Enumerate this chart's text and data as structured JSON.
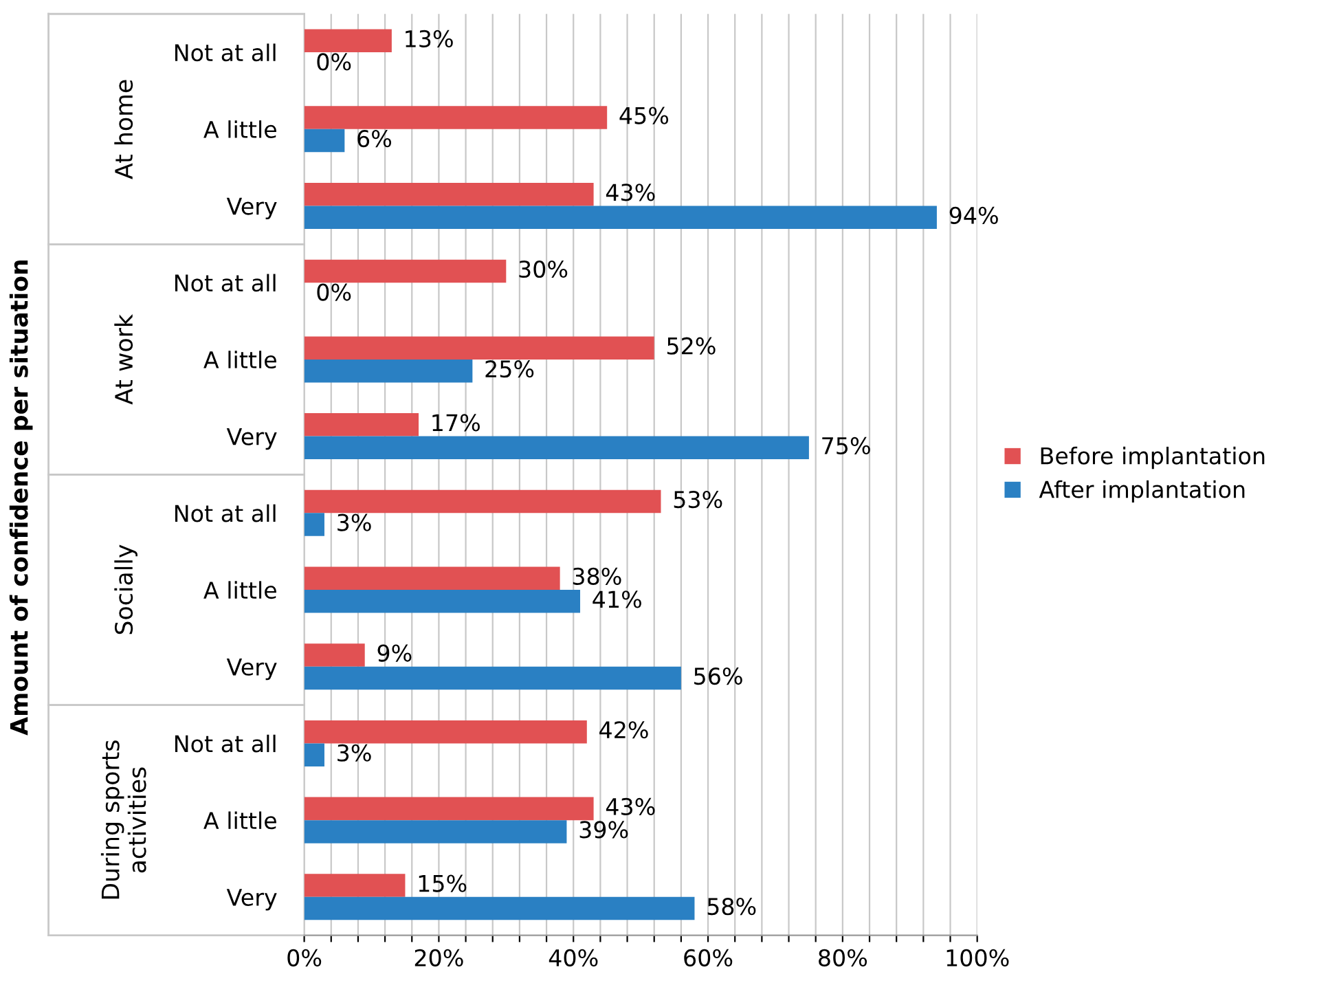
{
  "chart_data": {
    "type": "bar",
    "orientation": "horizontal",
    "categories": [
      "Not at all",
      "A little",
      "Very",
      "Not at all",
      "A little",
      "Very",
      "Not at all",
      "A little",
      "Very",
      "Not at all",
      "A little",
      "Very"
    ],
    "annotations": [
      "Amount of confidence per situation",
      "At home",
      "At work",
      "Socially",
      "During sports\nactivities"
    ],
    "series": [
      {
        "name": "Before implantation",
        "color": "#e15153",
        "values": [
          13,
          45,
          43,
          30,
          52,
          17,
          53,
          38,
          9,
          42,
          43,
          15
        ],
        "value_labels": [
          "13%",
          "45%",
          "43%",
          "30%",
          "52%",
          "17%",
          "53%",
          "38%",
          "9%",
          "42%",
          "43%",
          "15%"
        ]
      },
      {
        "name": "After implantation",
        "color": "#2a80c3",
        "values": [
          0,
          6,
          94,
          0,
          25,
          75,
          3,
          41,
          56,
          3,
          39,
          58
        ],
        "value_labels": [
          "0%",
          "6%",
          "94%",
          "0%",
          "25%",
          "75%",
          "3%",
          "41%",
          "56%",
          "3%",
          "39%",
          "58%"
        ]
      }
    ],
    "xlim": [
      0,
      100
    ],
    "xticks": [
      {
        "value": 0,
        "label": "0%"
      },
      {
        "value": 4,
        "label": null
      },
      {
        "value": 8,
        "label": null
      },
      {
        "value": 12,
        "label": null
      },
      {
        "value": 16,
        "label": null
      },
      {
        "value": 20,
        "label": "20%"
      },
      {
        "value": 24,
        "label": null
      },
      {
        "value": 28,
        "label": null
      },
      {
        "value": 32,
        "label": null
      },
      {
        "value": 36,
        "label": null
      },
      {
        "value": 40,
        "label": "40%"
      },
      {
        "value": 44,
        "label": null
      },
      {
        "value": 48,
        "label": null
      },
      {
        "value": 52,
        "label": null
      },
      {
        "value": 56,
        "label": null
      },
      {
        "value": 60,
        "label": "60%"
      },
      {
        "value": 64,
        "label": null
      },
      {
        "value": 68,
        "label": null
      },
      {
        "value": 72,
        "label": null
      },
      {
        "value": 76,
        "label": null
      },
      {
        "value": 80,
        "label": "80%"
      },
      {
        "value": 84,
        "label": null
      },
      {
        "value": 88,
        "label": null
      },
      {
        "value": 92,
        "label": null
      },
      {
        "value": 96,
        "label": null
      },
      {
        "value": 100,
        "label": "100%"
      }
    ],
    "grid": "x",
    "legend": "right"
  }
}
